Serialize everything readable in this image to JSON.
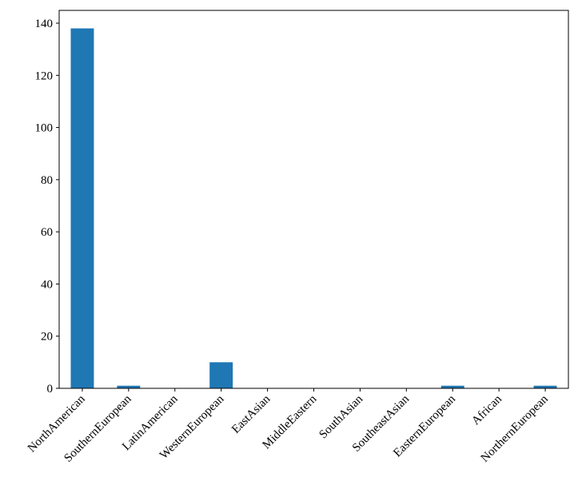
{
  "chart_data": {
    "type": "bar",
    "categories": [
      "NorthAmerican",
      "SouthernEuropean",
      "LatinAmerican",
      "WesternEuropean",
      "EastAsian",
      "MiddleEastern",
      "SouthAsian",
      "SoutheastAsian",
      "EasternEuropean",
      "African",
      "NorthernEuropean"
    ],
    "values": [
      138,
      1,
      0,
      10,
      0,
      0,
      0,
      0,
      1,
      0,
      1
    ],
    "color": "#1f77b4",
    "ylim": [
      0,
      144.9
    ],
    "yticks": [
      0,
      20,
      40,
      60,
      80,
      100,
      120,
      140
    ],
    "grid": false
  }
}
